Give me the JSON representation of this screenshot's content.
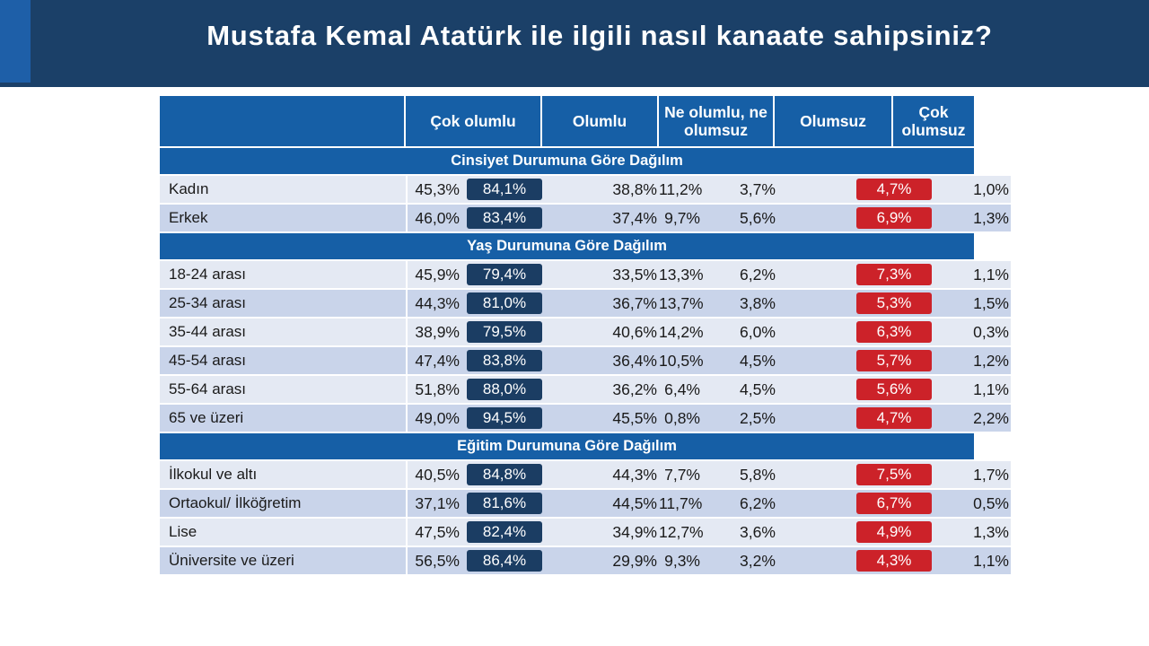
{
  "title": "Mustafa Kemal Atatürk ile ilgili nasıl kanaate sahipsiniz?",
  "colors": {
    "header_bg": "#1b4068",
    "table_header": "#165fa6",
    "positive_badge": "#1b3d63",
    "negative_badge": "#cc2229"
  },
  "chart_data": {
    "type": "table",
    "columns": [
      "",
      "Çok olumlu",
      "Olumlu",
      "Ne olumlu, ne olumsuz",
      "Olumsuz",
      "Çok olumsuz"
    ],
    "total_columns_note": "",
    "sections": [
      {
        "title": "Cinsiyet Durumuna Göre Dağılım",
        "rows": [
          {
            "label": "Kadın",
            "cok_olumlu": "45,3%",
            "olumlu_toplam": "84,1%",
            "olumlu": "38,8%",
            "ne_ne": "11,2%",
            "olumsuz": "3,7%",
            "olumsuz_toplam": "4,7%",
            "cok_olumsuz": "1,0%"
          },
          {
            "label": "Erkek",
            "cok_olumlu": "46,0%",
            "olumlu_toplam": "83,4%",
            "olumlu": "37,4%",
            "ne_ne": "9,7%",
            "olumsuz": "5,6%",
            "olumsuz_toplam": "6,9%",
            "cok_olumsuz": "1,3%"
          }
        ]
      },
      {
        "title": "Yaş Durumuna Göre Dağılım",
        "rows": [
          {
            "label": "18-24 arası",
            "cok_olumlu": "45,9%",
            "olumlu_toplam": "79,4%",
            "olumlu": "33,5%",
            "ne_ne": "13,3%",
            "olumsuz": "6,2%",
            "olumsuz_toplam": "7,3%",
            "cok_olumsuz": "1,1%"
          },
          {
            "label": "25-34 arası",
            "cok_olumlu": "44,3%",
            "olumlu_toplam": "81,0%",
            "olumlu": "36,7%",
            "ne_ne": "13,7%",
            "olumsuz": "3,8%",
            "olumsuz_toplam": "5,3%",
            "cok_olumsuz": "1,5%"
          },
          {
            "label": "35-44 arası",
            "cok_olumlu": "38,9%",
            "olumlu_toplam": "79,5%",
            "olumlu": "40,6%",
            "ne_ne": "14,2%",
            "olumsuz": "6,0%",
            "olumsuz_toplam": "6,3%",
            "cok_olumsuz": "0,3%"
          },
          {
            "label": "45-54 arası",
            "cok_olumlu": "47,4%",
            "olumlu_toplam": "83,8%",
            "olumlu": "36,4%",
            "ne_ne": "10,5%",
            "olumsuz": "4,5%",
            "olumsuz_toplam": "5,7%",
            "cok_olumsuz": "1,2%"
          },
          {
            "label": "55-64 arası",
            "cok_olumlu": "51,8%",
            "olumlu_toplam": "88,0%",
            "olumlu": "36,2%",
            "ne_ne": "6,4%",
            "olumsuz": "4,5%",
            "olumsuz_toplam": "5,6%",
            "cok_olumsuz": "1,1%"
          },
          {
            "label": "65 ve üzeri",
            "cok_olumlu": "49,0%",
            "olumlu_toplam": "94,5%",
            "olumlu": "45,5%",
            "ne_ne": "0,8%",
            "olumsuz": "2,5%",
            "olumsuz_toplam": "4,7%",
            "cok_olumsuz": "2,2%"
          }
        ]
      },
      {
        "title": "Eğitim Durumuna Göre Dağılım",
        "rows": [
          {
            "label": "İlkokul ve altı",
            "cok_olumlu": "40,5%",
            "olumlu_toplam": "84,8%",
            "olumlu": "44,3%",
            "ne_ne": "7,7%",
            "olumsuz": "5,8%",
            "olumsuz_toplam": "7,5%",
            "cok_olumsuz": "1,7%"
          },
          {
            "label": "Ortaokul/ İlköğretim",
            "cok_olumlu": "37,1%",
            "olumlu_toplam": "81,6%",
            "olumlu": "44,5%",
            "ne_ne": "11,7%",
            "olumsuz": "6,2%",
            "olumsuz_toplam": "6,7%",
            "cok_olumsuz": "0,5%"
          },
          {
            "label": "Lise",
            "cok_olumlu": "47,5%",
            "olumlu_toplam": "82,4%",
            "olumlu": "34,9%",
            "ne_ne": "12,7%",
            "olumsuz": "3,6%",
            "olumsuz_toplam": "4,9%",
            "cok_olumsuz": "1,3%"
          },
          {
            "label": "Üniversite ve üzeri",
            "cok_olumlu": "56,5%",
            "olumlu_toplam": "86,4%",
            "olumlu": "29,9%",
            "ne_ne": "9,3%",
            "olumsuz": "3,2%",
            "olumsuz_toplam": "4,3%",
            "cok_olumsuz": "1,1%"
          }
        ]
      }
    ]
  }
}
